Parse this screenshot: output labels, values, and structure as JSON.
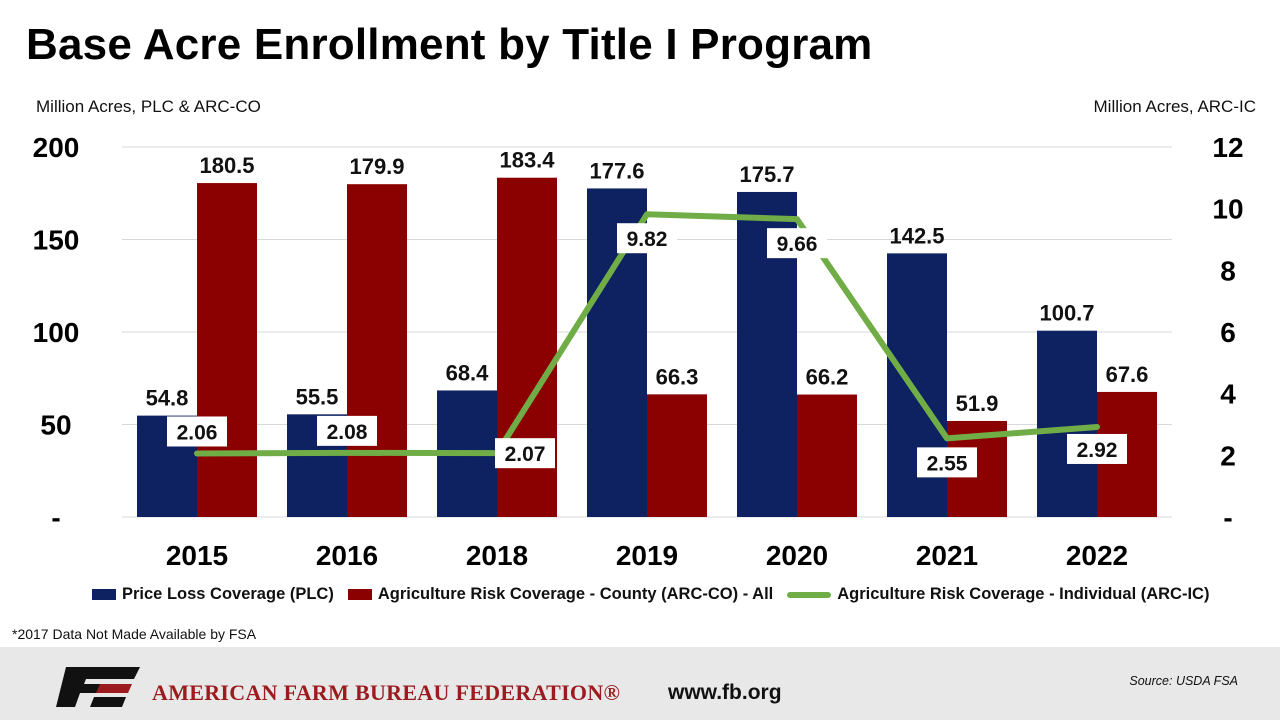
{
  "title": "Base Acre Enrollment by Title I Program",
  "footnote": "*2017 Data Not Made Available by FSA",
  "footer": {
    "org_name": "AMERICAN FARM BUREAU FEDERATION®",
    "url": "www.fb.org",
    "source": "Source:  USDA  FSA"
  },
  "colors": {
    "plc": "#0e2160",
    "arcco": "#8b0000",
    "arcic": "#70ad47",
    "footer_bg": "#e8e8e8",
    "org_red": "#9b1b1e"
  },
  "chart_data": {
    "type": "bar",
    "title": "Base Acre Enrollment by Title I Program",
    "ylabel": "Million Acres, PLC & ARC-CO",
    "y2label": "Million Acres, ARC-IC",
    "categories": [
      "2015",
      "2016",
      "2018",
      "2019",
      "2020",
      "2021",
      "2022"
    ],
    "ylim": [
      0,
      200
    ],
    "yticks": [
      "-",
      "50",
      "100",
      "150",
      "200"
    ],
    "y2lim": [
      0,
      12
    ],
    "y2ticks": [
      "-",
      "2",
      "4",
      "6",
      "8",
      "10",
      "12"
    ],
    "grid": true,
    "legend_position": "bottom",
    "series": [
      {
        "name": "Price Loss Coverage (PLC)",
        "type": "bar",
        "axis": "left",
        "values": [
          54.8,
          55.5,
          68.4,
          177.6,
          175.7,
          142.5,
          100.7
        ],
        "labels": [
          "54.8",
          "55.5",
          "68.4",
          "177.6",
          "175.7",
          "142.5",
          "100.7"
        ]
      },
      {
        "name": "Agriculture Risk Coverage - County (ARC-CO) - All",
        "type": "bar",
        "axis": "left",
        "values": [
          180.5,
          179.9,
          183.4,
          66.3,
          66.2,
          51.9,
          67.6
        ],
        "labels": [
          "180.5",
          "179.9",
          "183.4",
          "66.3",
          "66.2",
          "51.9",
          "67.6"
        ]
      },
      {
        "name": "Agriculture Risk Coverage - Individual (ARC-IC)",
        "type": "line",
        "axis": "right",
        "values": [
          2.06,
          2.08,
          2.07,
          9.82,
          9.66,
          2.55,
          2.92
        ],
        "labels": [
          "2.06",
          "2.08",
          "2.07",
          "9.82",
          "9.66",
          "2.55",
          "2.92"
        ]
      }
    ]
  }
}
